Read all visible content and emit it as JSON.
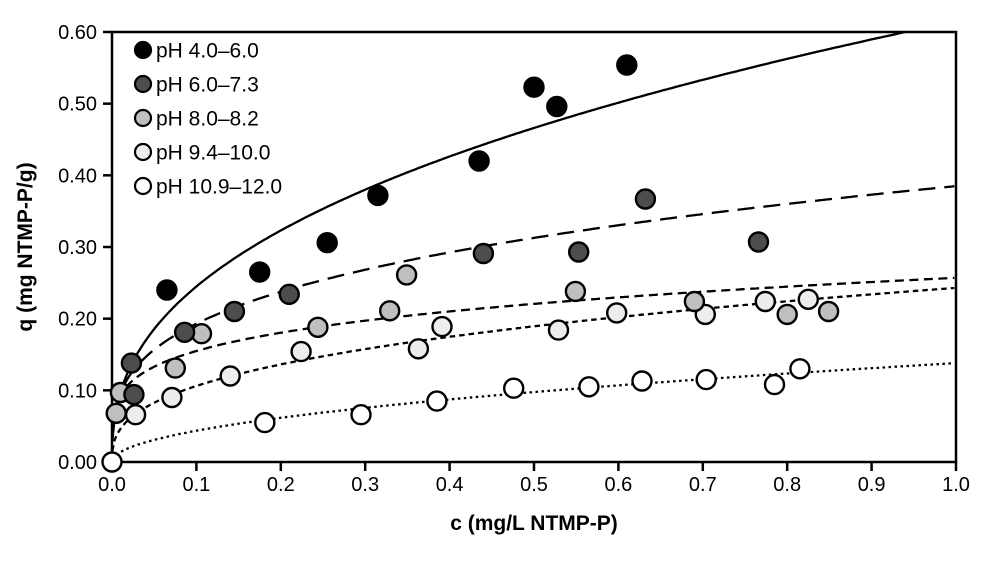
{
  "figure_background": "#ffffff",
  "axis_color": "#000000",
  "chart_data": {
    "type": "scatter",
    "title": "",
    "xlabel": "c (mg/L NTMP-P)",
    "ylabel": "q (mg NTMP-P/g)",
    "xlim": [
      0.0,
      1.0
    ],
    "ylim": [
      0.0,
      0.6
    ],
    "grid": false,
    "legend_position": "inside-top-left",
    "x_ticks": [
      0.0,
      0.1,
      0.2,
      0.3,
      0.4,
      0.5,
      0.6,
      0.7,
      0.8,
      0.9,
      1.0
    ],
    "x_tick_labels": [
      "0.0",
      "0.1",
      "0.2",
      "0.3",
      "0.4",
      "0.5",
      "0.6",
      "0.7",
      "0.8",
      "0.9",
      "1.0"
    ],
    "y_ticks": [
      0.0,
      0.1,
      0.2,
      0.3,
      0.4,
      0.5,
      0.6
    ],
    "y_tick_labels": [
      "0.00",
      "0.10",
      "0.20",
      "0.30",
      "0.40",
      "0.50",
      "0.60"
    ],
    "series": [
      {
        "name": "pH 4.0–6.0",
        "marker_fill": "#000000",
        "marker_edge": "#000000",
        "line_style": "solid",
        "fit_curve": {
          "model": "freundlich q=K*c^n",
          "K": 0.615,
          "n": 0.4
        },
        "points": [
          [
            0.065,
            0.24
          ],
          [
            0.175,
            0.265
          ],
          [
            0.255,
            0.306
          ],
          [
            0.315,
            0.372
          ],
          [
            0.435,
            0.42
          ],
          [
            0.5,
            0.523
          ],
          [
            0.527,
            0.496
          ],
          [
            0.61,
            0.554
          ]
        ]
      },
      {
        "name": "pH 6.0–7.3",
        "marker_fill": "#4d4d4d",
        "marker_edge": "#000000",
        "line_style": "long-dash",
        "fit_curve": {
          "model": "freundlich q=K*c^n",
          "K": 0.385,
          "n": 0.3
        },
        "points": [
          [
            0.023,
            0.138
          ],
          [
            0.026,
            0.094
          ],
          [
            0.086,
            0.181
          ],
          [
            0.145,
            0.21
          ],
          [
            0.21,
            0.234
          ],
          [
            0.44,
            0.291
          ],
          [
            0.553,
            0.293
          ],
          [
            0.632,
            0.367
          ],
          [
            0.766,
            0.307
          ]
        ]
      },
      {
        "name": "pH 8.0–8.2",
        "marker_fill": "#bfbfbf",
        "marker_edge": "#000000",
        "line_style": "medium-dash",
        "fit_curve": {
          "model": "freundlich q=K*c^n",
          "K": 0.257,
          "n": 0.22
        },
        "points": [
          [
            0.005,
            0.068
          ],
          [
            0.01,
            0.097
          ],
          [
            0.075,
            0.131
          ],
          [
            0.106,
            0.179
          ],
          [
            0.244,
            0.188
          ],
          [
            0.329,
            0.211
          ],
          [
            0.349,
            0.261
          ],
          [
            0.549,
            0.238
          ],
          [
            0.69,
            0.224
          ],
          [
            0.8,
            0.206
          ],
          [
            0.849,
            0.21
          ]
        ]
      },
      {
        "name": "pH 9.4–10.0",
        "marker_fill": "#ededed",
        "marker_edge": "#000000",
        "line_style": "short-dash",
        "fit_curve": {
          "model": "freundlich q=K*c^n",
          "K": 0.243,
          "n": 0.36
        },
        "points": [
          [
            0.028,
            0.066
          ],
          [
            0.071,
            0.09
          ],
          [
            0.14,
            0.12
          ],
          [
            0.224,
            0.154
          ],
          [
            0.363,
            0.158
          ],
          [
            0.391,
            0.189
          ],
          [
            0.529,
            0.184
          ],
          [
            0.598,
            0.208
          ],
          [
            0.703,
            0.206
          ],
          [
            0.774,
            0.224
          ],
          [
            0.825,
            0.227
          ]
        ]
      },
      {
        "name": "pH 10.9–12.0",
        "marker_fill": "#ffffff",
        "marker_edge": "#000000",
        "line_style": "dotted",
        "fit_curve": {
          "model": "freundlich q=K*c^n",
          "K": 0.138,
          "n": 0.5
        },
        "points": [
          [
            0.0,
            0.0
          ],
          [
            0.181,
            0.055
          ],
          [
            0.295,
            0.066
          ],
          [
            0.385,
            0.085
          ],
          [
            0.476,
            0.103
          ],
          [
            0.565,
            0.105
          ],
          [
            0.628,
            0.113
          ],
          [
            0.704,
            0.115
          ],
          [
            0.785,
            0.108
          ],
          [
            0.815,
            0.13
          ]
        ]
      }
    ]
  }
}
